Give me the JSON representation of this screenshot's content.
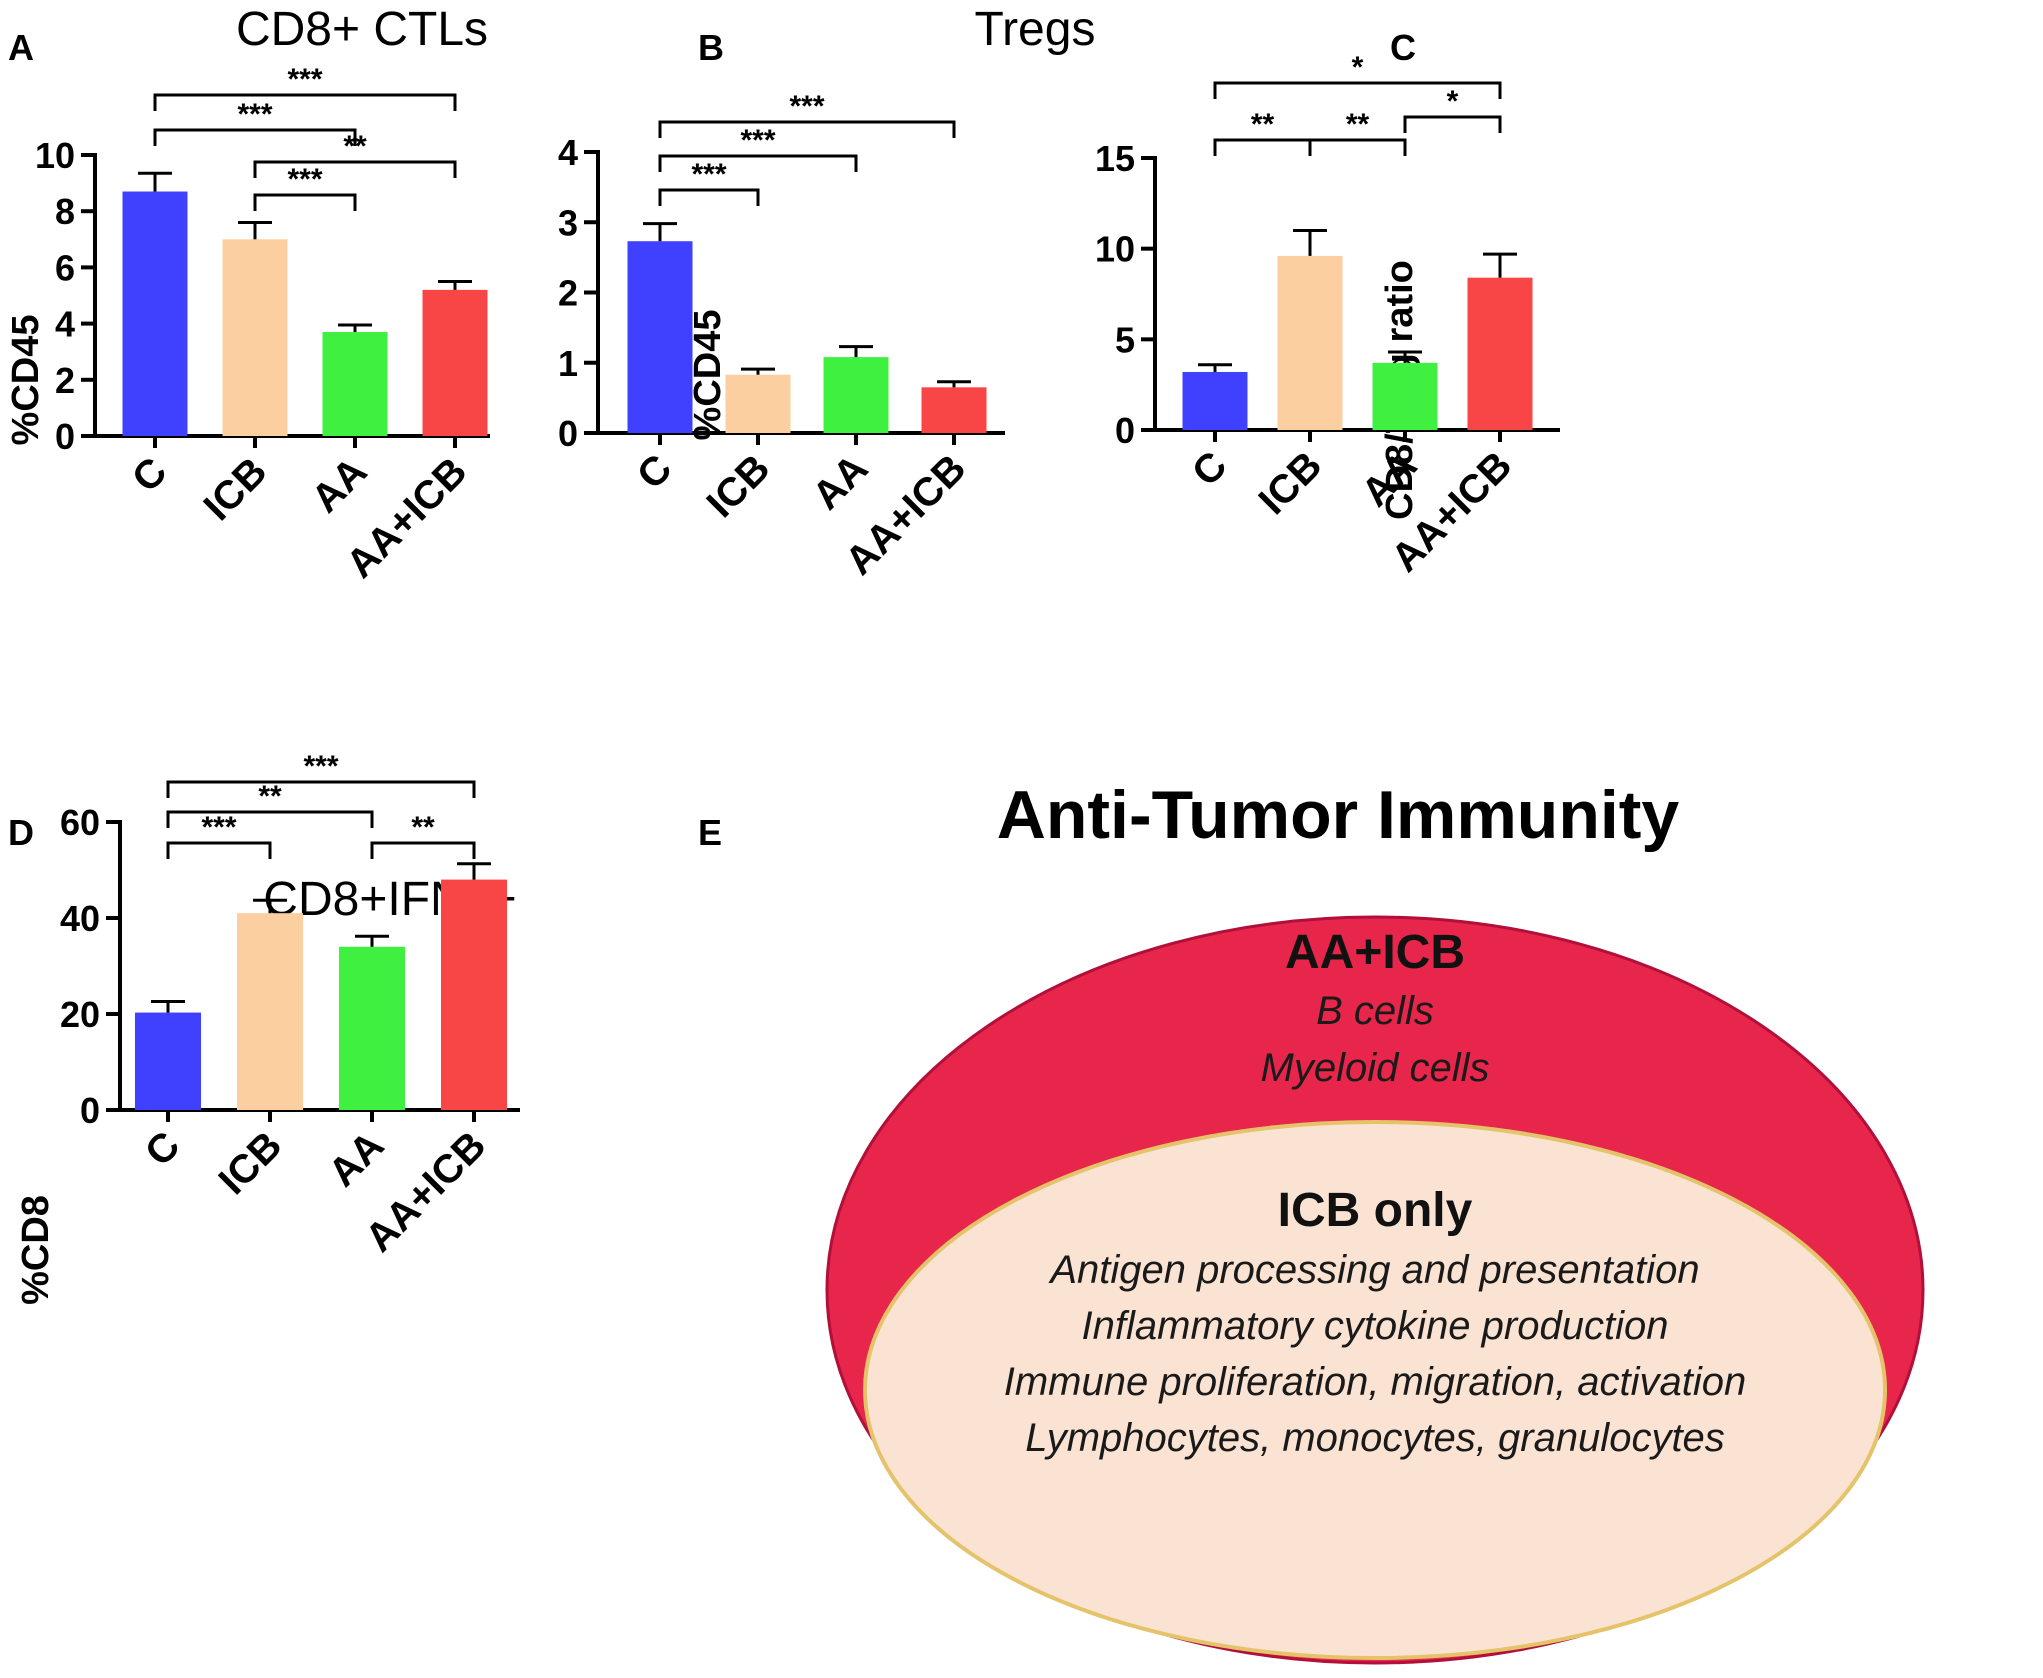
{
  "chart_data": [
    {
      "panel": "A",
      "type": "bar",
      "title": "CD8+ CTLs",
      "ylabel": "%CD45",
      "xlabel": "",
      "categories": [
        "C",
        "ICB",
        "AA",
        "AA+ICB"
      ],
      "values": [
        8.7,
        7.0,
        3.7,
        5.2
      ],
      "errors": [
        0.65,
        0.6,
        0.25,
        0.3
      ],
      "ylim": [
        0,
        10
      ],
      "yticks": [
        "0",
        "2",
        "4",
        "6",
        "8",
        "10"
      ],
      "significance": [
        {
          "from": 0,
          "to": 3,
          "label": "***"
        },
        {
          "from": 0,
          "to": 2,
          "label": "***"
        },
        {
          "from": 1,
          "to": 3,
          "label": "**"
        },
        {
          "from": 1,
          "to": 2,
          "label": "***"
        }
      ]
    },
    {
      "panel": "B",
      "type": "bar",
      "title": "Tregs",
      "ylabel": "%CD45",
      "xlabel": "",
      "categories": [
        "C",
        "ICB",
        "AA",
        "AA+ICB"
      ],
      "values": [
        2.73,
        0.83,
        1.08,
        0.65
      ],
      "errors": [
        0.25,
        0.08,
        0.15,
        0.08
      ],
      "ylim": [
        0,
        4
      ],
      "yticks": [
        "0",
        "1",
        "2",
        "3",
        "4"
      ],
      "significance": [
        {
          "from": 0,
          "to": 3,
          "label": "***"
        },
        {
          "from": 0,
          "to": 2,
          "label": "***"
        },
        {
          "from": 0,
          "to": 1,
          "label": "***"
        }
      ]
    },
    {
      "panel": "C",
      "type": "bar",
      "title": "",
      "ylabel": "CD8/Treg ratio",
      "xlabel": "",
      "categories": [
        "C",
        "ICB",
        "AA",
        "AA+ICB"
      ],
      "values": [
        3.2,
        9.6,
        3.7,
        8.4
      ],
      "errors": [
        0.4,
        1.4,
        0.6,
        1.3
      ],
      "ylim": [
        0,
        15
      ],
      "yticks": [
        "0",
        "5",
        "10",
        "15"
      ],
      "significance": [
        {
          "from": 0,
          "to": 3,
          "label": "*"
        },
        {
          "from": 0,
          "to": 1,
          "label": "**",
          "shared": "left"
        },
        {
          "from": 1,
          "to": 2,
          "label": "**",
          "shared": "right"
        },
        {
          "from": 2,
          "to": 3,
          "label": "*"
        }
      ]
    },
    {
      "panel": "D",
      "type": "bar",
      "title": "CD8+IFNγ+",
      "ylabel": "%CD8",
      "xlabel": "",
      "categories": [
        "C",
        "ICB",
        "AA",
        "AA+ICB"
      ],
      "values": [
        20.3,
        41.0,
        34.0,
        48.0
      ],
      "errors": [
        2.3,
        2.7,
        2.2,
        3.3
      ],
      "ylim": [
        0,
        60
      ],
      "yticks": [
        "0",
        "20",
        "40",
        "60"
      ],
      "significance": [
        {
          "from": 0,
          "to": 3,
          "label": "***"
        },
        {
          "from": 0,
          "to": 2,
          "label": "**"
        },
        {
          "from": 0,
          "to": 1,
          "label": "***"
        },
        {
          "from": 2,
          "to": 3,
          "label": "**"
        }
      ]
    }
  ],
  "colors": {
    "C": "#4040ff",
    "ICB": "#fbcf9f",
    "AA": "#40f040",
    "AA+ICB": "#f84545",
    "outer_ellipse": "#e8254a",
    "inner_ellipse": "#fbe3d3",
    "inner_border": "#e5c36a"
  },
  "summary": {
    "panel": "E",
    "title": "Anti-Tumor Immunity",
    "outer": {
      "heading": "AA+ICB",
      "items": [
        "B cells",
        "Myeloid cells"
      ]
    },
    "inner": {
      "heading": "ICB only",
      "items": [
        "Antigen processing and presentation",
        "Inflammatory cytokine production",
        "Immune proliferation, migration, activation",
        "Lymphocytes, monocytes, granulocytes"
      ]
    }
  }
}
